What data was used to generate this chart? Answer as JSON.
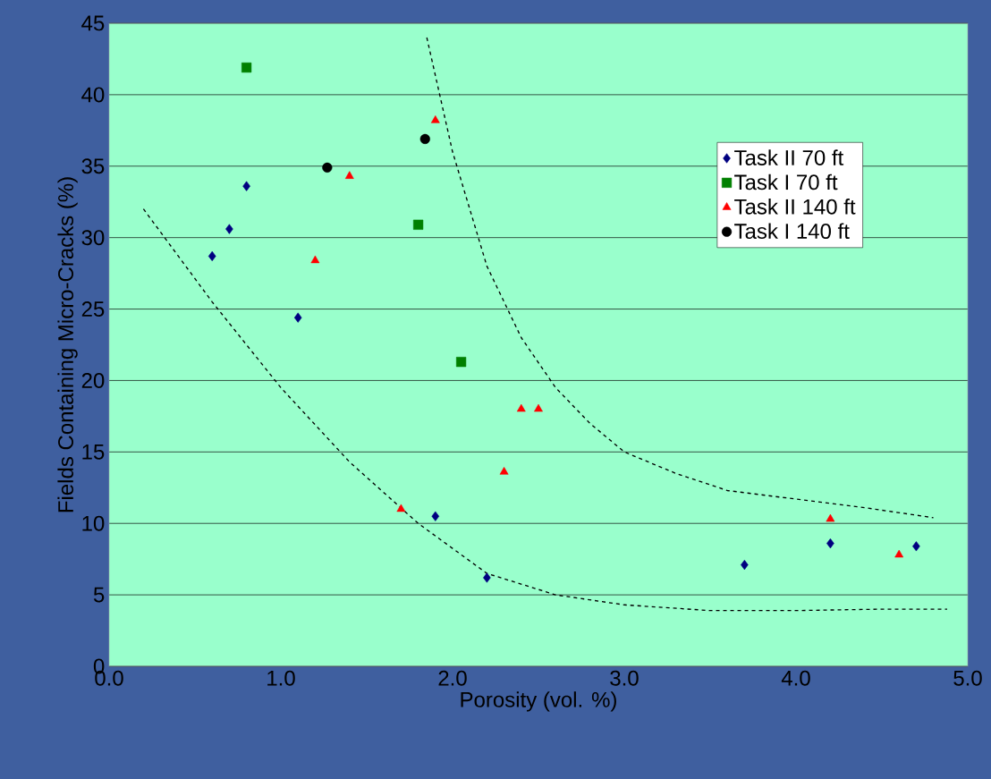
{
  "chart_data": {
    "type": "scatter",
    "xlabel": "Porosity (vol. %)",
    "ylabel": "Fields Containing Micro-Cracks (%)",
    "xlim": [
      0,
      5
    ],
    "ylim": [
      0,
      45
    ],
    "xticks": [
      {
        "value": 0,
        "label": "0.0"
      },
      {
        "value": 1,
        "label": "1.0"
      },
      {
        "value": 2,
        "label": "2.0"
      },
      {
        "value": 3,
        "label": "3.0"
      },
      {
        "value": 4,
        "label": "4.0"
      },
      {
        "value": 5,
        "label": "5.0"
      }
    ],
    "yticks": [
      0,
      5,
      10,
      15,
      20,
      25,
      30,
      35,
      40,
      45
    ],
    "grid": "y",
    "legend": "top right",
    "series": [
      {
        "name": "Task II 70 ft",
        "color": "#000080",
        "marker": "diamond",
        "x": [
          0.6,
          0.7,
          0.8,
          1.1,
          1.9,
          2.2,
          3.7,
          4.2,
          4.7
        ],
        "values": [
          28.7,
          30.6,
          33.6,
          24.4,
          10.5,
          6.2,
          7.1,
          8.6,
          8.4
        ]
      },
      {
        "name": "Task I 70 ft",
        "color": "#008000",
        "marker": "square",
        "x": [
          0.8,
          1.8,
          2.05
        ],
        "values": [
          41.9,
          30.9,
          21.3
        ]
      },
      {
        "name": "Task II 140 ft",
        "color": "#ff0000",
        "marker": "triangle",
        "x": [
          1.9,
          1.4,
          1.2,
          1.7,
          2.3,
          2.4,
          2.5,
          4.2,
          4.6
        ],
        "values": [
          38.2,
          34.3,
          28.4,
          11.0,
          13.6,
          18.0,
          18.0,
          10.3,
          7.8
        ]
      },
      {
        "name": "Task I 140 ft",
        "color": "#000000",
        "marker": "circle",
        "x": [
          1.27,
          1.84
        ],
        "values": [
          34.9,
          36.9
        ]
      },
      {
        "type": "line",
        "color": "#000000",
        "marker": "none",
        "line_style": "dashed",
        "x": [
          0.2,
          0.6,
          1.0,
          1.4,
          1.8,
          2.2,
          2.6,
          3.0,
          3.5,
          4.0,
          4.5,
          4.88
        ],
        "values": [
          32.0,
          25.5,
          19.5,
          14.3,
          10.0,
          6.5,
          5.0,
          4.3,
          3.9,
          3.9,
          4.0,
          4.0
        ]
      },
      {
        "type": "line",
        "color": "#000000",
        "marker": "none",
        "line_style": "dashed",
        "x": [
          1.85,
          2.0,
          2.2,
          2.4,
          2.6,
          2.8,
          3.0,
          3.3,
          3.6,
          4.0,
          4.4,
          4.8
        ],
        "values": [
          44.0,
          36.0,
          28.0,
          23.0,
          19.5,
          17.0,
          15.0,
          13.5,
          12.3,
          11.7,
          11.1,
          10.4
        ]
      }
    ]
  }
}
